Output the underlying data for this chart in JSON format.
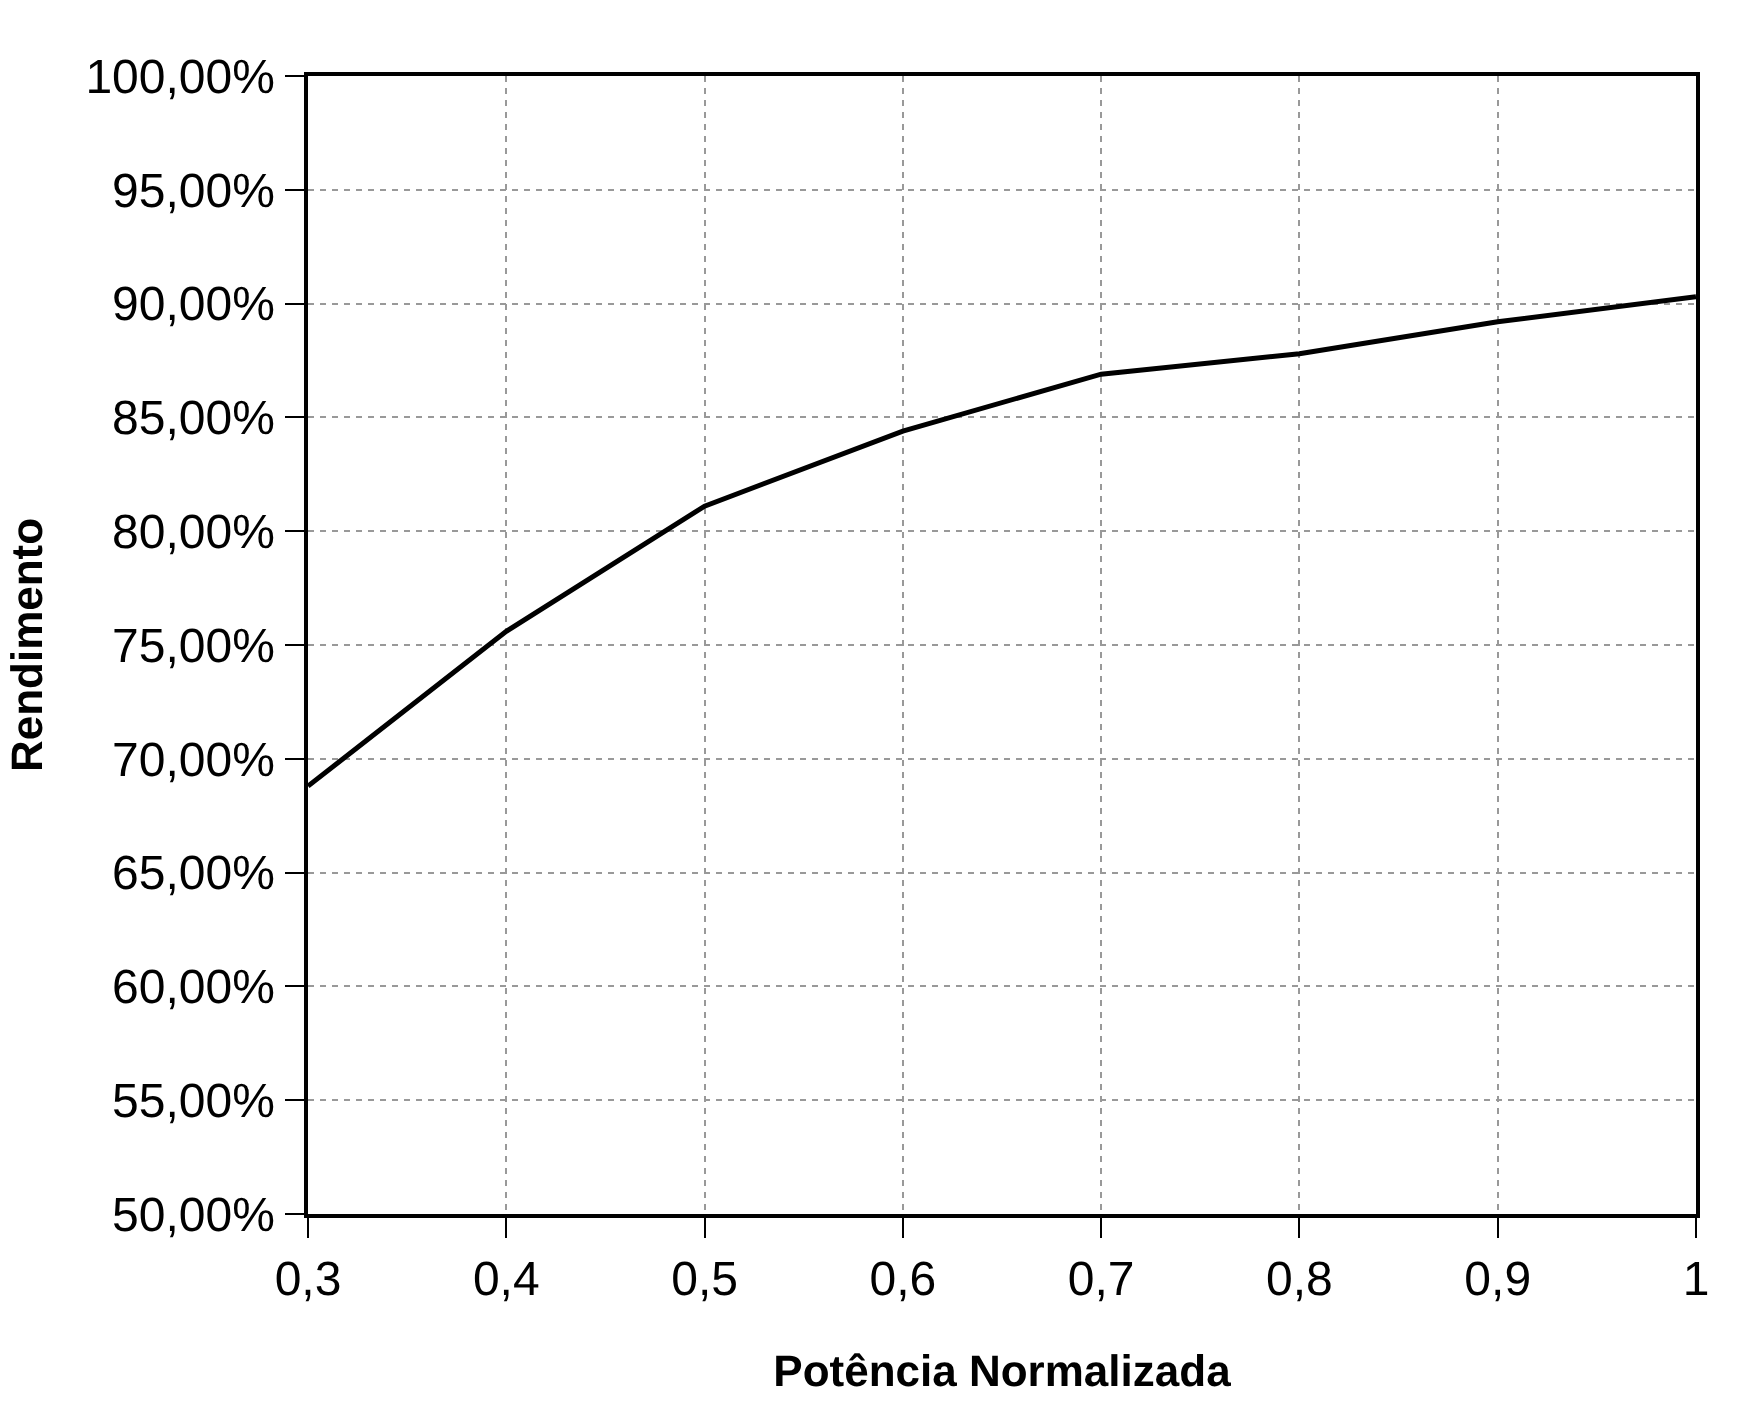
{
  "chart_data": {
    "type": "line",
    "xlabel": "Potência Normalizada",
    "ylabel": "Rendimento",
    "x": [
      0.3,
      0.4,
      0.5,
      0.6,
      0.7,
      0.8,
      0.9,
      1
    ],
    "series": [
      {
        "color": "#000000",
        "values": [
          68.8,
          75.6,
          81.1,
          84.4,
          86.9,
          87.8,
          89.2,
          90.3
        ]
      }
    ],
    "xlim": [
      0.3,
      1
    ],
    "xticks": [
      {
        "value": 0.3,
        "label": "0,3"
      },
      {
        "value": 0.4,
        "label": "0,4"
      },
      {
        "value": 0.5,
        "label": "0,5"
      },
      {
        "value": 0.6,
        "label": "0,6"
      },
      {
        "value": 0.7,
        "label": "0,7"
      },
      {
        "value": 0.8,
        "label": "0,8"
      },
      {
        "value": 0.9,
        "label": "0,9"
      },
      1
    ],
    "ylim": [
      50,
      100
    ],
    "yticks": [
      {
        "value": 50,
        "label": "50,00%"
      },
      {
        "value": 55,
        "label": "55,00%"
      },
      {
        "value": 60,
        "label": "60,00%"
      },
      {
        "value": 65,
        "label": "65,00%"
      },
      {
        "value": 70,
        "label": "70,00%"
      },
      {
        "value": 75,
        "label": "75,00%"
      },
      {
        "value": 80,
        "label": "80,00%"
      },
      {
        "value": 85,
        "label": "85,00%"
      },
      {
        "value": 90,
        "label": "90,00%"
      },
      {
        "value": 95,
        "label": "95,00%"
      },
      {
        "value": 100,
        "label": "100,00%"
      }
    ],
    "grid": true,
    "marker": "none",
    "line_style": "solid"
  }
}
